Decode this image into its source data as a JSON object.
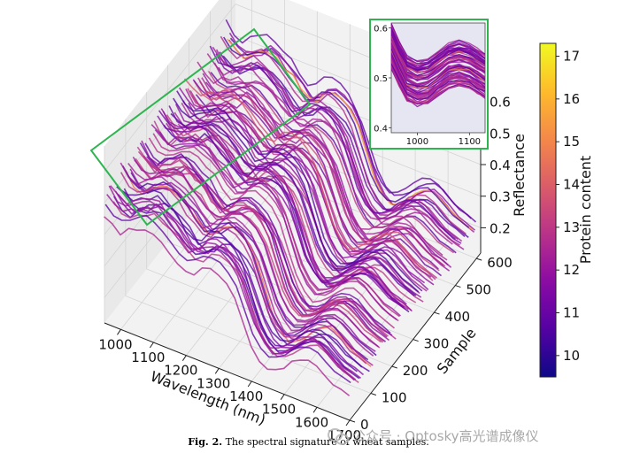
{
  "chart_data": [
    {
      "type": "line",
      "projection": "3d",
      "xlabel": "Wavelength (nm)",
      "ylabel": "Sample",
      "zlabel": "Reflectance",
      "x_ticks": [
        "1000",
        "1100",
        "1200",
        "1300",
        "1400",
        "1500",
        "1600",
        "1700"
      ],
      "y_ticks": [
        "0",
        "100",
        "200",
        "300",
        "400",
        "500",
        "600"
      ],
      "z_ticks": [
        "0.2",
        "0.3",
        "0.4",
        "0.5",
        "0.6"
      ],
      "xlim": [
        950,
        1700
      ],
      "ylim": [
        0,
        620
      ],
      "zlim": [
        0.12,
        0.68
      ],
      "profile": {
        "wavelength": [
          950,
          975,
          1000,
          1025,
          1050,
          1075,
          1100,
          1125,
          1150,
          1175,
          1200,
          1225,
          1250,
          1275,
          1300,
          1325,
          1350,
          1375,
          1400,
          1425,
          1450,
          1475,
          1500,
          1525,
          1550,
          1575,
          1600,
          1625,
          1650,
          1675,
          1700
        ],
        "reflectance": [
          0.52,
          0.49,
          0.48,
          0.5,
          0.51,
          0.53,
          0.52,
          0.5,
          0.48,
          0.45,
          0.43,
          0.44,
          0.47,
          0.48,
          0.47,
          0.45,
          0.41,
          0.34,
          0.27,
          0.23,
          0.21,
          0.22,
          0.24,
          0.27,
          0.29,
          0.3,
          0.29,
          0.27,
          0.25,
          0.24,
          0.23
        ]
      },
      "highlight_region": {
        "wavelength": [
          950,
          1130
        ]
      },
      "colorbar": {
        "label": "Protein content",
        "ticks": [
          "10",
          "11",
          "12",
          "13",
          "14",
          "15",
          "16",
          "17"
        ],
        "range": [
          9.5,
          17.3
        ],
        "colormap": "plasma"
      }
    },
    {
      "type": "line",
      "role": "inset",
      "x_ticks": [
        "1000",
        "1100"
      ],
      "y_ticks": [
        "0.4",
        "0.5",
        "0.6"
      ],
      "xlim": [
        950,
        1130
      ],
      "ylim": [
        0.39,
        0.61
      ],
      "profile": {
        "wavelength": [
          950,
          965,
          980,
          1000,
          1020,
          1040,
          1060,
          1080,
          1100,
          1115,
          1130
        ],
        "reflectance": [
          0.565,
          0.53,
          0.5,
          0.49,
          0.495,
          0.51,
          0.525,
          0.53,
          0.525,
          0.515,
          0.505
        ]
      },
      "frame_color": "#2eb54f",
      "background": "#e6e6f2"
    }
  ],
  "caption": {
    "label": "Fig. 2.",
    "text": "The spectral signature of wheat samples."
  },
  "watermark": {
    "text": "公众号 · Optosky高光谱成像仪"
  }
}
